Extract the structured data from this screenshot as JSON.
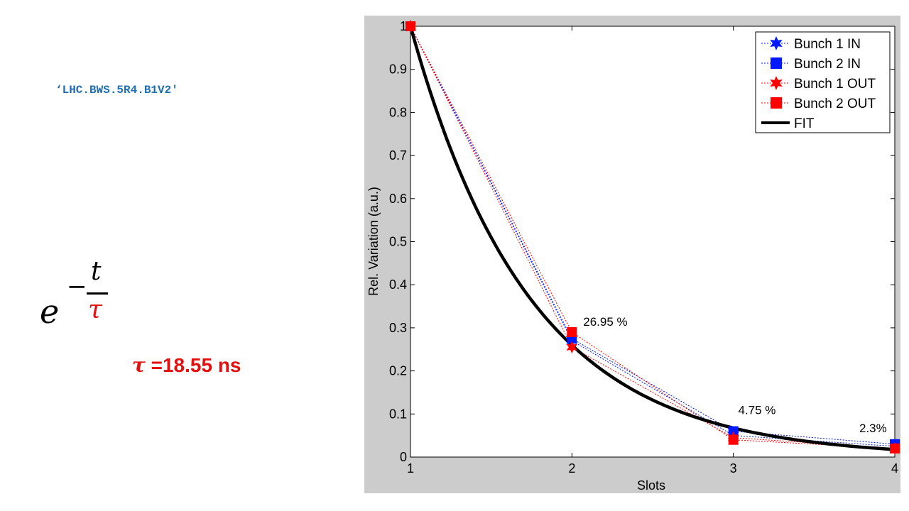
{
  "slide": {
    "device_name": "‘LHC.BWS.5R4.B1V2'",
    "formula": {
      "base": "e",
      "minus": "−",
      "numerator": "t",
      "denominator": "τ"
    },
    "tau_label": {
      "symbol": "τ",
      "value": " =18.55 ns"
    }
  },
  "colors": {
    "blue": "#0019ff",
    "red": "#ff0000",
    "fit": "#000000",
    "frame": "#cccccc",
    "slide_red": "#e3100f",
    "slide_blue": "#1f6fb6"
  },
  "chart_data": {
    "type": "line",
    "title": "",
    "xlabel": "Slots",
    "ylabel": "Rel. Variation (a.u.)",
    "xlim": [
      1,
      4
    ],
    "ylim": [
      0,
      1
    ],
    "xticks": [
      1,
      2,
      3,
      4
    ],
    "yticks": [
      0,
      0.1,
      0.2,
      0.3,
      0.4,
      0.5,
      0.6,
      0.7,
      0.8,
      0.9,
      1
    ],
    "grid": false,
    "legend_position": "top-right",
    "series": [
      {
        "name": "Bunch 1 IN",
        "marker": "star",
        "color": "#0019ff",
        "x": [
          1,
          2,
          3,
          4
        ],
        "y": [
          1.0,
          0.27,
          0.05,
          0.025
        ]
      },
      {
        "name": "Bunch 2 IN",
        "marker": "square",
        "color": "#0019ff",
        "x": [
          1,
          2,
          3,
          4
        ],
        "y": [
          1.0,
          0.275,
          0.06,
          0.03
        ]
      },
      {
        "name": "Bunch 1 OUT",
        "marker": "star",
        "color": "#ff0000",
        "x": [
          1,
          2,
          3,
          4
        ],
        "y": [
          1.0,
          0.255,
          0.045,
          0.02
        ]
      },
      {
        "name": "Bunch 2 OUT",
        "marker": "square",
        "color": "#ff0000",
        "x": [
          1,
          2,
          3,
          4
        ],
        "y": [
          1.0,
          0.29,
          0.04,
          0.02
        ]
      },
      {
        "name": "FIT",
        "marker": "none",
        "color": "#000000",
        "type": "curve",
        "model": "exp(-(x-1)/tau_slots)",
        "tau_slots": 0.742
      }
    ],
    "annotations": [
      {
        "text": "26.95 %",
        "x": 2.07,
        "y": 0.305
      },
      {
        "text": "4.75 %",
        "x": 3.03,
        "y": 0.1
      },
      {
        "text": "2.3%",
        "x": 3.78,
        "y": 0.058
      }
    ]
  }
}
